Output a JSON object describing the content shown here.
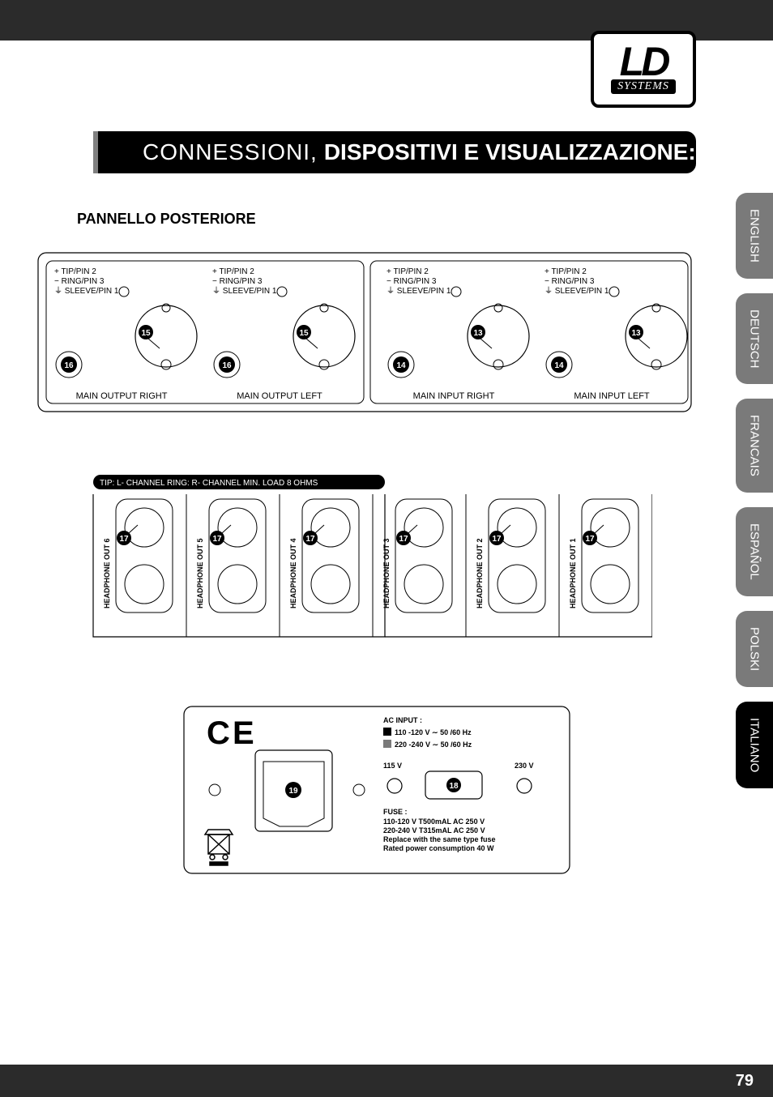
{
  "logo": {
    "top": "LD",
    "bottom": "SYSTEMS"
  },
  "title": {
    "light": "CONNESSIONI,",
    "bold": "DISPOSITIVI E VISUALIZZAZIONE:"
  },
  "section_heading": "PANNELLO POSTERIORE",
  "pin_labels": {
    "tip": "+ TIP/PIN 2",
    "ring": "− RING/PIN 3",
    "sleeve": "⏚ SLEEVE/PIN 1"
  },
  "callouts": {
    "c13": "13",
    "c14": "14",
    "c15": "15",
    "c16": "16",
    "c17": "17",
    "c18": "18",
    "c19": "19"
  },
  "panel1": {
    "outputs": {
      "right": "MAIN OUTPUT RIGHT",
      "left": "MAIN OUTPUT LEFT"
    },
    "inputs": {
      "right": "MAIN INPUT RIGHT",
      "left": "MAIN INPUT LEFT"
    }
  },
  "panel2": {
    "header": "TIP: L- CHANNEL RING: R- CHANNEL MIN. LOAD 8 OHMS",
    "outs": [
      "HEADPHONE OUT 6",
      "HEADPHONE OUT 5",
      "HEADPHONE OUT 4",
      "HEADPHONE OUT 3",
      "HEADPHONE OUT 2",
      "HEADPHONE OUT 1"
    ]
  },
  "panel3": {
    "ac_input": "AC INPUT :",
    "v1": "110 -120 V ∼ 50 /60 Hz",
    "v2": "220 -240 V ∼ 50 /60 Hz",
    "v115": "115 V",
    "v230": "230 V",
    "fuse": "FUSE :",
    "fuse_line1": "110-120 V  T500mAL  AC 250 V",
    "fuse_line2": "220-240 V  T315mAL  AC 250 V",
    "fuse_line3": "Replace with the same type fuse",
    "fuse_line4": "Rated power consumption 40 W"
  },
  "languages": [
    {
      "label": "ENGLISH",
      "active": false
    },
    {
      "label": "DEUTSCH",
      "active": false
    },
    {
      "label": "FRANCAIS",
      "active": false
    },
    {
      "label": "ESPAÑOL",
      "active": false
    },
    {
      "label": "POLSKI",
      "active": false
    },
    {
      "label": "ITALIANO",
      "active": true
    }
  ],
  "page_number": "79",
  "colors": {
    "dark_bar": "#2b2b2b",
    "tab_gray": "#7a7a7a",
    "black": "#000000"
  }
}
